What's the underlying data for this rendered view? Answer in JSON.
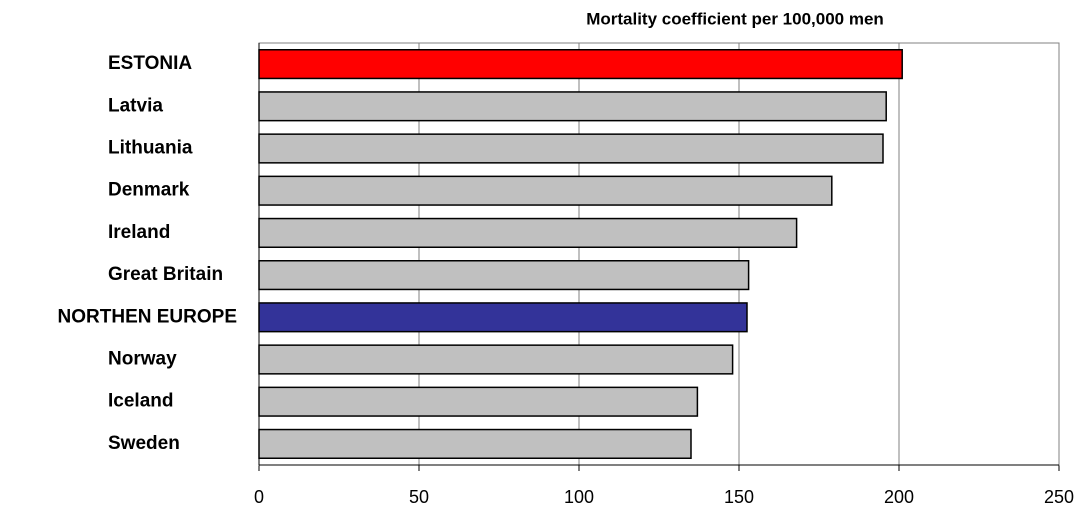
{
  "chart_data": {
    "type": "bar",
    "orientation": "horizontal",
    "title": "Mortality coefficient per 100,000 men",
    "categories": [
      "ESTONIA",
      "Latvia",
      "Lithuania",
      "Denmark",
      "Ireland",
      "Great Britain",
      "NORTHEN EUROPE",
      "Norway",
      "Iceland",
      "Sweden"
    ],
    "values": [
      201,
      196,
      195,
      179,
      168,
      153,
      152.5,
      148,
      137,
      135
    ],
    "colors": [
      "#ff0000",
      "#c0c0c0",
      "#c0c0c0",
      "#c0c0c0",
      "#c0c0c0",
      "#c0c0c0",
      "#333399",
      "#c0c0c0",
      "#c0c0c0",
      "#c0c0c0"
    ],
    "xlim": [
      0,
      250
    ],
    "xticks": [
      0,
      50,
      100,
      150,
      200,
      250
    ],
    "grid": true
  }
}
